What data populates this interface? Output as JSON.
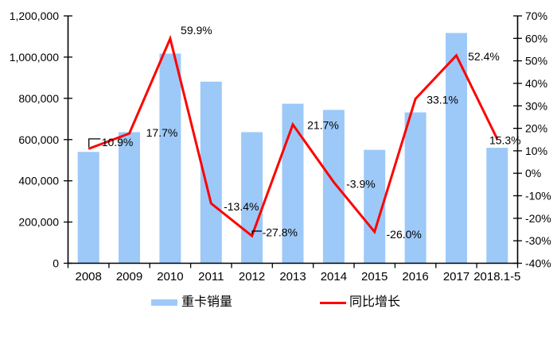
{
  "chart_data": {
    "type": "combo",
    "title": "",
    "categories": [
      "2008",
      "2009",
      "2010",
      "2011",
      "2012",
      "2013",
      "2014",
      "2015",
      "2016",
      "2017",
      "2018.1-5"
    ],
    "series": [
      {
        "name": "重卡销量",
        "chart": "bar",
        "axis": "left",
        "color": "#9DC9F8",
        "values": [
          540000,
          636000,
          1017000,
          881000,
          636000,
          774000,
          744000,
          550000,
          732000,
          1117000,
          560000
        ]
      },
      {
        "name": "同比增长",
        "chart": "line",
        "axis": "right",
        "color": "#FF0000",
        "values": [
          10.9,
          17.7,
          59.9,
          -13.4,
          -27.8,
          21.7,
          -3.9,
          -26.0,
          33.1,
          52.4,
          15.3
        ],
        "point_labels": [
          "10.9%",
          "17.7%",
          "59.9%",
          "-13.4%",
          "-27.8%",
          "21.7%",
          "-3.9%",
          "-26.0%",
          "33.1%",
          "52.4%",
          "15.3%"
        ]
      }
    ],
    "left_axis": {
      "min": 0,
      "max": 1200000,
      "step": 200000,
      "tick_labels": [
        "1,200,000",
        "1,000,000",
        "800,000",
        "600,000",
        "400,000",
        "200,000",
        "0"
      ]
    },
    "right_axis": {
      "min": -40,
      "max": 70,
      "step": 10,
      "tick_labels": [
        "70%",
        "60%",
        "50%",
        "40%",
        "30%",
        "20%",
        "10%",
        "0%",
        "-10%",
        "-20%",
        "-30%",
        "-40%"
      ]
    },
    "legend": {
      "position": "bottom",
      "items": [
        {
          "label": "重卡销量",
          "swatch": "bar"
        },
        {
          "label": "同比增长",
          "swatch": "line"
        }
      ]
    },
    "grid": false,
    "background": "#FFFFFF",
    "axis_color": "#000000",
    "text_color": "#000000"
  }
}
